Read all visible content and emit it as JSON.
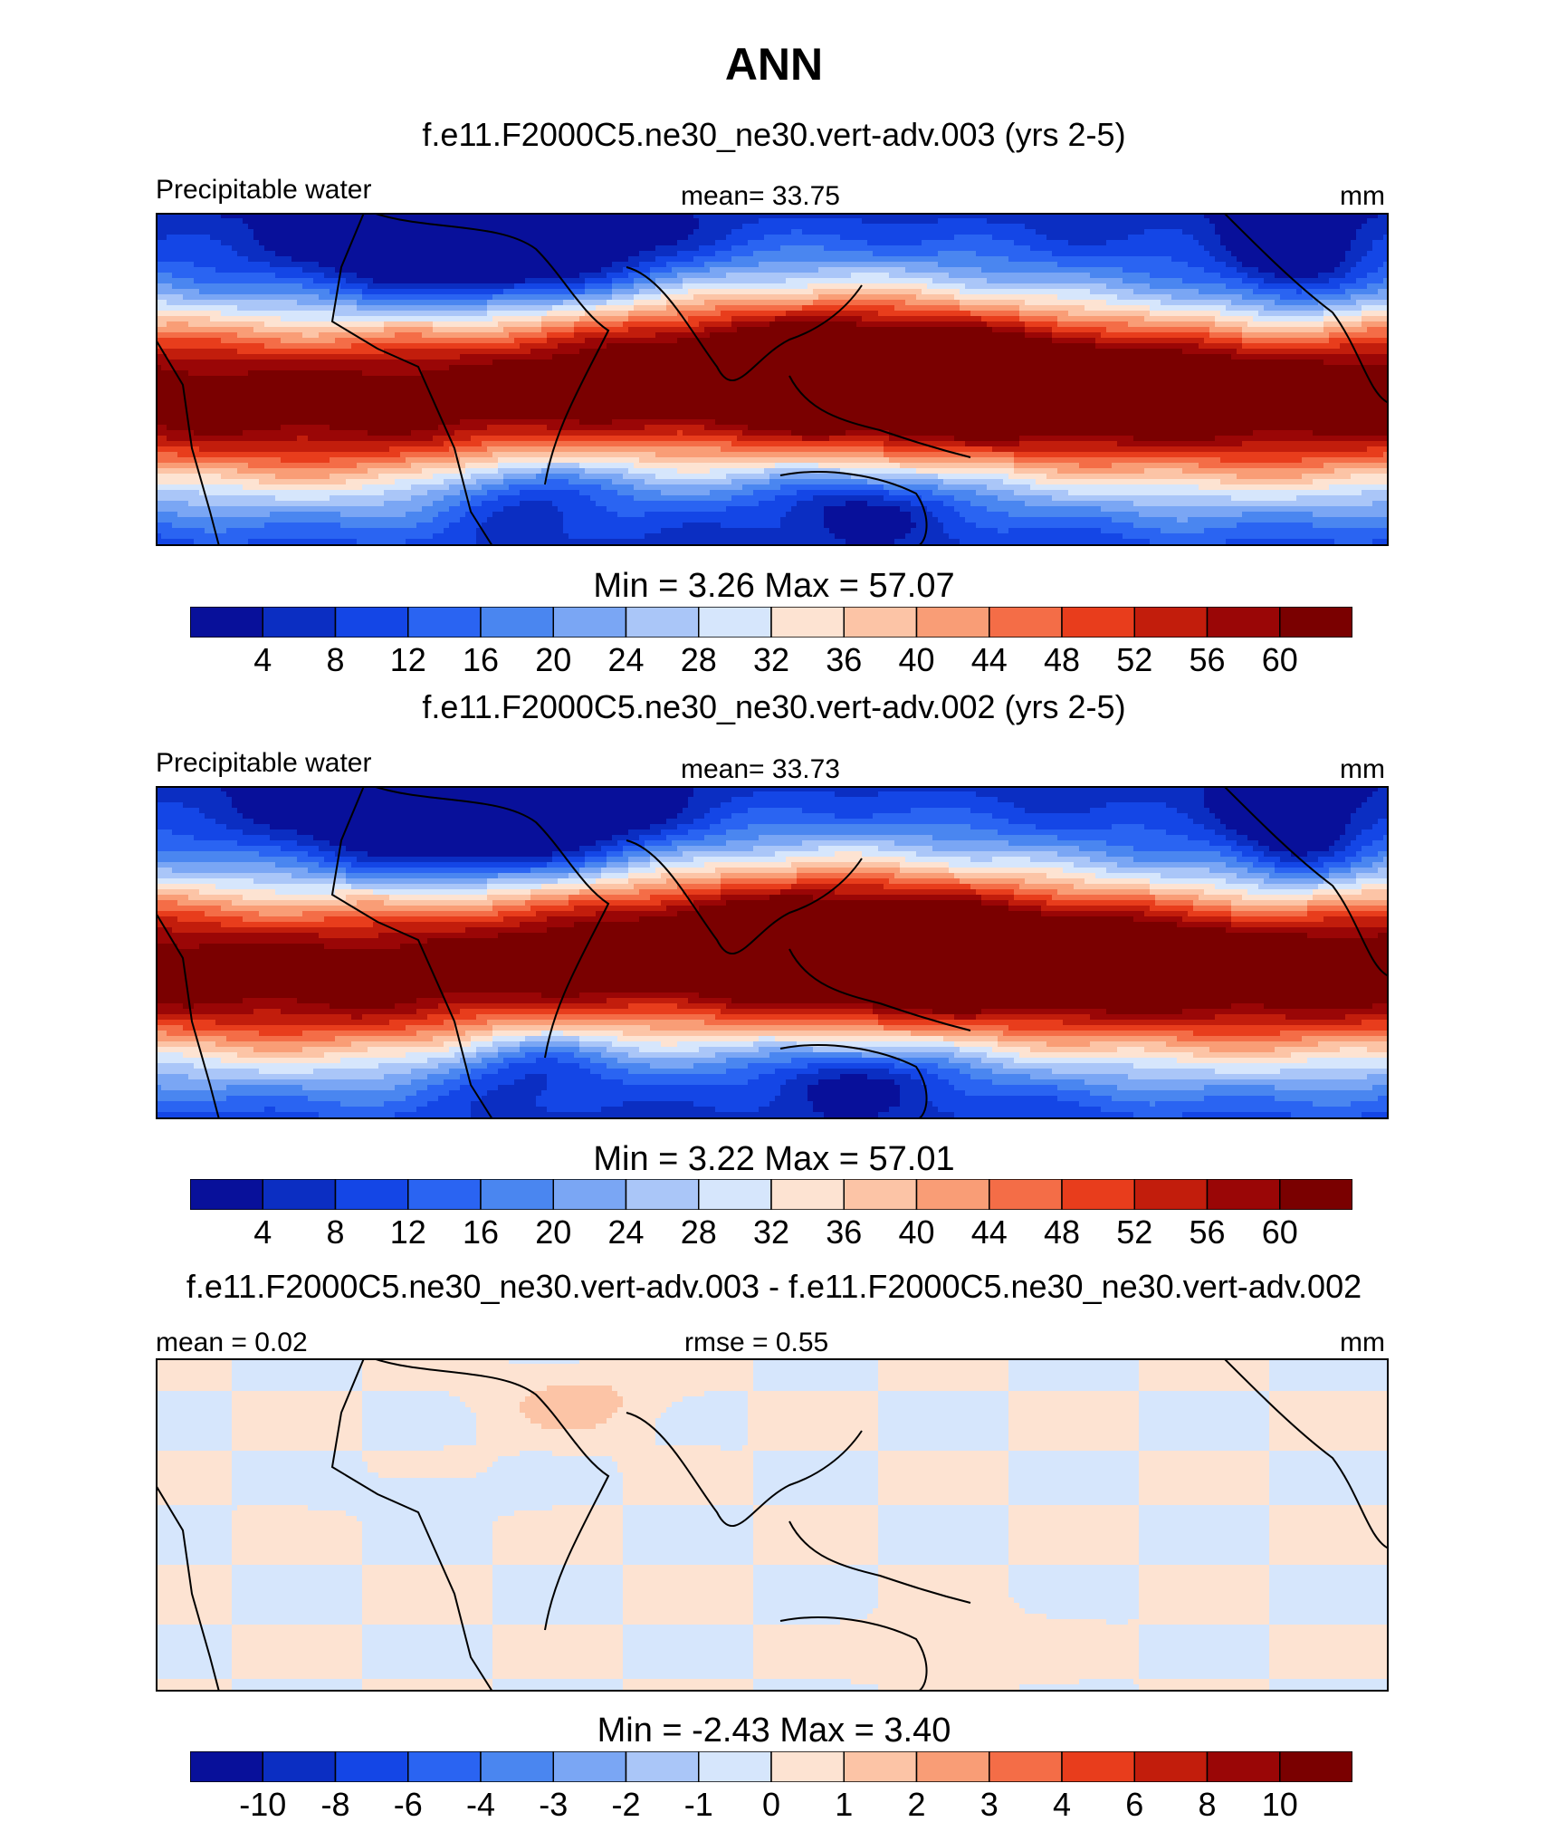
{
  "title": "ANN",
  "panels": [
    {
      "subtitle": "f.e11.F2000C5.ne30_ne30.vert-adv.003 (yrs 2-5)",
      "left_label": "Precipitable water",
      "center_label": "mean=  33.75",
      "right_label": "mm",
      "minmax": "Min =   3.26 Max =  57.07",
      "kind": "field"
    },
    {
      "subtitle": "f.e11.F2000C5.ne30_ne30.vert-adv.002 (yrs 2-5)",
      "left_label": "Precipitable water",
      "center_label": "mean=  33.73",
      "right_label": "mm",
      "minmax": "Min =   3.22 Max =  57.01",
      "kind": "field"
    },
    {
      "subtitle": "f.e11.F2000C5.ne30_ne30.vert-adv.003 - f.e11.F2000C5.ne30_ne30.vert-adv.002",
      "left_label": "mean =   0.02",
      "center_label": "rmse =   0.55",
      "right_label": "mm",
      "minmax": "Min =  -2.43 Max =    3.40",
      "kind": "diff"
    }
  ],
  "colorbar_field": {
    "ticks": [
      "4",
      "8",
      "12",
      "16",
      "20",
      "24",
      "28",
      "32",
      "36",
      "40",
      "44",
      "48",
      "52",
      "56",
      "60"
    ]
  },
  "colorbar_diff": {
    "ticks": [
      "-10",
      "-8",
      "-6",
      "-4",
      "-3",
      "-2",
      "-1",
      "0",
      "1",
      "2",
      "3",
      "4",
      "6",
      "8",
      "10"
    ]
  },
  "colors": [
    "#08109a",
    "#0b2ec2",
    "#1446e6",
    "#2a64f2",
    "#4a86f0",
    "#7aa6f4",
    "#aac6f8",
    "#d6e6fc",
    "#fde3d2",
    "#fcc4a6",
    "#f99d76",
    "#f46d47",
    "#e83d1c",
    "#c21d0c",
    "#9a0606",
    "#7a0000"
  ]
}
